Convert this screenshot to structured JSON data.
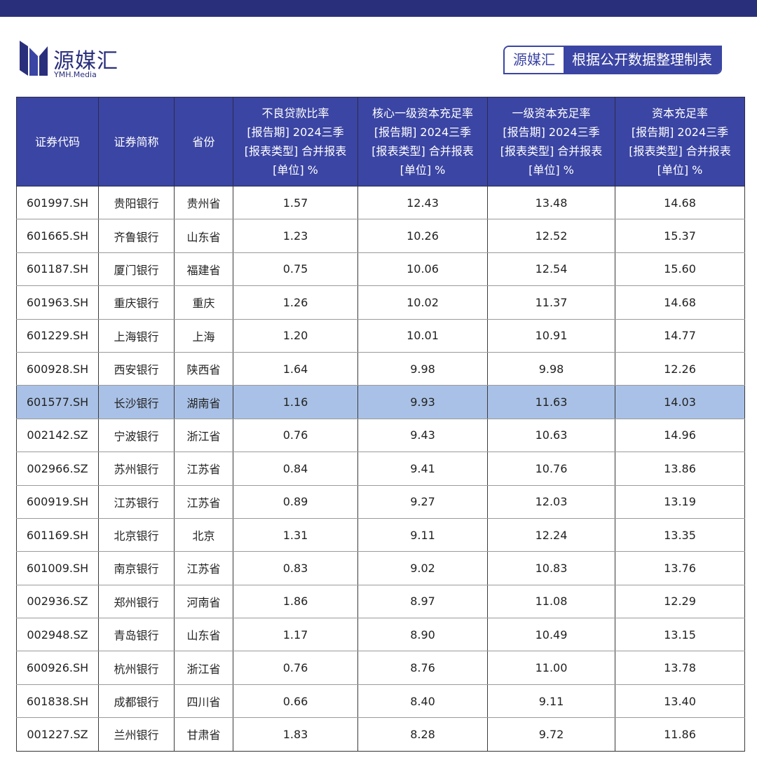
{
  "header": {
    "logo_name": "源媒汇",
    "logo_sub": "YMH.Media",
    "badge_left": "源媒汇",
    "badge_right": "根据公开数据整理制表"
  },
  "table": {
    "columns": [
      [
        "证券代码"
      ],
      [
        "证券简称"
      ],
      [
        "省份"
      ],
      [
        "不良贷款比率",
        "[报告期] 2024三季",
        "[报表类型] 合并报表",
        "[单位] %"
      ],
      [
        "核心一级资本充足率",
        "[报告期] 2024三季",
        "[报表类型] 合并报表",
        "[单位] %"
      ],
      [
        "一级资本充足率",
        "[报告期] 2024三季",
        "[报表类型] 合并报表",
        "[单位] %"
      ],
      [
        "资本充足率",
        "[报告期] 2024三季",
        "[报表类型] 合并报表",
        "[单位] %"
      ]
    ],
    "rows": [
      [
        "601997.SH",
        "贵阳银行",
        "贵州省",
        "1.57",
        "12.43",
        "13.48",
        "14.68"
      ],
      [
        "601665.SH",
        "齐鲁银行",
        "山东省",
        "1.23",
        "10.26",
        "12.52",
        "15.37"
      ],
      [
        "601187.SH",
        "厦门银行",
        "福建省",
        "0.75",
        "10.06",
        "12.54",
        "15.60"
      ],
      [
        "601963.SH",
        "重庆银行",
        "重庆",
        "1.26",
        "10.02",
        "11.37",
        "14.68"
      ],
      [
        "601229.SH",
        "上海银行",
        "上海",
        "1.20",
        "10.01",
        "10.91",
        "14.77"
      ],
      [
        "600928.SH",
        "西安银行",
        "陕西省",
        "1.64",
        "9.98",
        "9.98",
        "12.26"
      ],
      [
        "601577.SH",
        "长沙银行",
        "湖南省",
        "1.16",
        "9.93",
        "11.63",
        "14.03"
      ],
      [
        "002142.SZ",
        "宁波银行",
        "浙江省",
        "0.76",
        "9.43",
        "10.63",
        "14.96"
      ],
      [
        "002966.SZ",
        "苏州银行",
        "江苏省",
        "0.84",
        "9.41",
        "10.76",
        "13.86"
      ],
      [
        "600919.SH",
        "江苏银行",
        "江苏省",
        "0.89",
        "9.27",
        "12.03",
        "13.19"
      ],
      [
        "601169.SH",
        "北京银行",
        "北京",
        "1.31",
        "9.11",
        "12.24",
        "13.35"
      ],
      [
        "601009.SH",
        "南京银行",
        "江苏省",
        "0.83",
        "9.02",
        "10.83",
        "13.76"
      ],
      [
        "002936.SZ",
        "郑州银行",
        "河南省",
        "1.86",
        "8.97",
        "11.08",
        "12.29"
      ],
      [
        "002948.SZ",
        "青岛银行",
        "山东省",
        "1.17",
        "8.90",
        "10.49",
        "13.15"
      ],
      [
        "600926.SH",
        "杭州银行",
        "浙江省",
        "0.76",
        "8.76",
        "11.00",
        "13.78"
      ],
      [
        "601838.SH",
        "成都银行",
        "四川省",
        "0.66",
        "8.40",
        "9.11",
        "13.40"
      ],
      [
        "001227.SZ",
        "兰州银行",
        "甘肃省",
        "1.83",
        "8.28",
        "9.72",
        "11.86"
      ]
    ]
  }
}
